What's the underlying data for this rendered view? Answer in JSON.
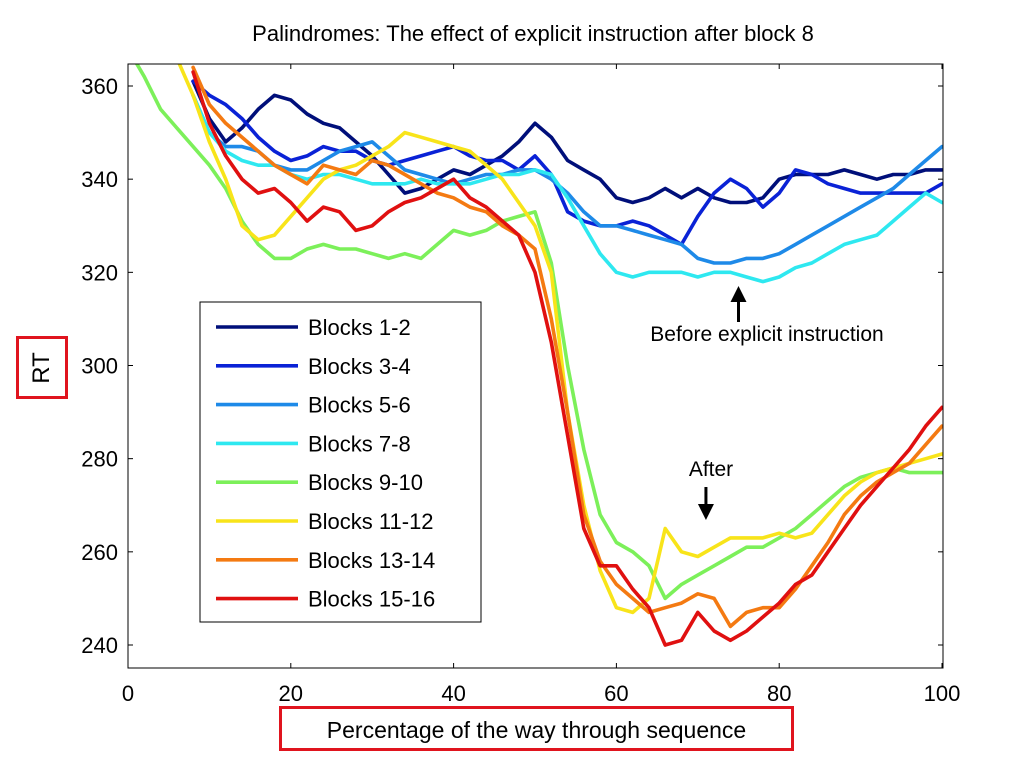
{
  "chart_data": {
    "type": "line",
    "title": "Palindromes: The effect of explicit instruction after block 8",
    "xlabel": "Percentage of the way through sequence",
    "ylabel": "RT",
    "xlim": [
      0,
      100
    ],
    "ylim": [
      235,
      365
    ],
    "xticks": [
      0,
      20,
      40,
      60,
      80,
      100
    ],
    "yticks": [
      240,
      260,
      280,
      300,
      320,
      340,
      360
    ],
    "grid": false,
    "legend_position": "left-middle",
    "series": [
      {
        "name": "Blocks 1-2",
        "color": "#000f7a",
        "x": [
          8,
          10,
          12,
          14,
          16,
          18,
          20,
          22,
          24,
          26,
          28,
          30,
          32,
          34,
          36,
          38,
          40,
          42,
          44,
          46,
          48,
          50,
          52,
          54,
          56,
          58,
          60,
          62,
          64,
          66,
          68,
          70,
          72,
          74,
          76,
          78,
          80,
          82,
          84,
          86,
          88,
          90,
          92,
          94,
          96,
          98,
          100
        ],
        "y": [
          361,
          353,
          348,
          351,
          355,
          358,
          357,
          354,
          352,
          351,
          348,
          345,
          341,
          337,
          338,
          340,
          342,
          341,
          343,
          345,
          348,
          352,
          349,
          344,
          342,
          340,
          336,
          335,
          336,
          338,
          336,
          338,
          336,
          335,
          335,
          336,
          340,
          341,
          341,
          341,
          342,
          341,
          340,
          341,
          341,
          342,
          342
        ]
      },
      {
        "name": "Blocks 3-4",
        "color": "#0a22d6",
        "x": [
          8,
          10,
          12,
          14,
          16,
          18,
          20,
          22,
          24,
          26,
          28,
          30,
          32,
          34,
          36,
          38,
          40,
          42,
          44,
          46,
          48,
          50,
          52,
          54,
          56,
          58,
          60,
          62,
          64,
          66,
          68,
          70,
          72,
          74,
          76,
          78,
          80,
          82,
          84,
          86,
          88,
          90,
          92,
          94,
          96,
          98,
          100
        ],
        "y": [
          361,
          358,
          356,
          353,
          349,
          346,
          344,
          345,
          347,
          346,
          346,
          344,
          343,
          344,
          345,
          346,
          347,
          345,
          344,
          344,
          342,
          345,
          341,
          333,
          331,
          330,
          330,
          331,
          330,
          328,
          326,
          332,
          337,
          340,
          338,
          334,
          337,
          342,
          341,
          339,
          338,
          337,
          337,
          337,
          337,
          337,
          339
        ]
      },
      {
        "name": "Blocks 5-6",
        "color": "#1e8ae8",
        "x": [
          8,
          10,
          12,
          14,
          16,
          18,
          20,
          22,
          24,
          26,
          28,
          30,
          32,
          34,
          36,
          38,
          40,
          42,
          44,
          46,
          48,
          50,
          52,
          54,
          56,
          58,
          60,
          62,
          64,
          66,
          68,
          70,
          72,
          74,
          76,
          78,
          80,
          82,
          84,
          86,
          88,
          90,
          92,
          94,
          96,
          98,
          100
        ],
        "y": [
          358,
          350,
          347,
          347,
          346,
          343,
          342,
          342,
          344,
          346,
          347,
          348,
          345,
          342,
          341,
          340,
          339,
          340,
          341,
          341,
          342,
          342,
          340,
          337,
          333,
          330,
          330,
          329,
          328,
          327,
          326,
          323,
          322,
          322,
          323,
          323,
          324,
          326,
          328,
          330,
          332,
          334,
          336,
          338,
          341,
          344,
          347
        ]
      },
      {
        "name": "Blocks 7-8",
        "color": "#2ee8f0",
        "x": [
          8,
          10,
          12,
          14,
          16,
          18,
          20,
          22,
          24,
          26,
          28,
          30,
          32,
          34,
          36,
          38,
          40,
          42,
          44,
          46,
          48,
          50,
          52,
          54,
          56,
          58,
          60,
          62,
          64,
          66,
          68,
          70,
          72,
          74,
          76,
          78,
          80,
          82,
          84,
          86,
          88,
          90,
          92,
          94,
          96,
          98,
          100
        ],
        "y": [
          358,
          350,
          346,
          344,
          343,
          343,
          341,
          340,
          341,
          341,
          340,
          339,
          339,
          339,
          340,
          339,
          339,
          339,
          340,
          341,
          341,
          342,
          341,
          336,
          330,
          324,
          320,
          319,
          320,
          320,
          320,
          319,
          320,
          320,
          319,
          318,
          319,
          321,
          322,
          324,
          326,
          327,
          328,
          331,
          334,
          337,
          335
        ]
      },
      {
        "name": "Blocks 9-10",
        "color": "#7cf05a",
        "x": [
          0,
          2,
          4,
          6,
          8,
          10,
          12,
          14,
          16,
          18,
          20,
          22,
          24,
          26,
          28,
          30,
          32,
          34,
          36,
          38,
          40,
          42,
          44,
          46,
          48,
          50,
          52,
          54,
          56,
          58,
          60,
          62,
          64,
          66,
          68,
          70,
          72,
          74,
          76,
          78,
          80,
          82,
          84,
          86,
          88,
          90,
          92,
          94,
          96,
          98,
          100
        ],
        "y": [
          368,
          362,
          355,
          351,
          347,
          343,
          338,
          331,
          326,
          323,
          323,
          325,
          326,
          325,
          325,
          324,
          323,
          324,
          323,
          326,
          329,
          328,
          329,
          331,
          332,
          333,
          322,
          300,
          282,
          268,
          262,
          260,
          257,
          250,
          253,
          255,
          257,
          259,
          261,
          261,
          263,
          265,
          268,
          271,
          274,
          276,
          277,
          278,
          277,
          277,
          277
        ]
      },
      {
        "name": "Blocks 11-12",
        "color": "#f8e41a",
        "x": [
          6,
          8,
          10,
          12,
          14,
          16,
          18,
          20,
          22,
          24,
          26,
          28,
          30,
          32,
          34,
          36,
          38,
          40,
          42,
          44,
          46,
          48,
          50,
          52,
          54,
          56,
          58,
          60,
          62,
          64,
          66,
          68,
          70,
          72,
          74,
          76,
          78,
          80,
          82,
          84,
          86,
          88,
          90,
          92,
          94,
          96,
          98,
          100
        ],
        "y": [
          366,
          358,
          348,
          340,
          330,
          327,
          328,
          332,
          336,
          340,
          342,
          343,
          345,
          347,
          350,
          349,
          348,
          347,
          346,
          343,
          340,
          335,
          330,
          320,
          290,
          270,
          256,
          248,
          247,
          250,
          265,
          260,
          259,
          261,
          263,
          263,
          263,
          264,
          263,
          264,
          268,
          272,
          275,
          277,
          278,
          279,
          280,
          281
        ]
      },
      {
        "name": "Blocks 13-14",
        "color": "#f47a12",
        "x": [
          8,
          10,
          12,
          14,
          16,
          18,
          20,
          22,
          24,
          26,
          28,
          30,
          32,
          34,
          36,
          38,
          40,
          42,
          44,
          46,
          48,
          50,
          52,
          54,
          56,
          58,
          60,
          62,
          64,
          66,
          68,
          70,
          72,
          74,
          76,
          78,
          80,
          82,
          84,
          86,
          88,
          90,
          92,
          94,
          96,
          98,
          100
        ],
        "y": [
          364,
          356,
          352,
          349,
          346,
          343,
          341,
          339,
          343,
          342,
          341,
          344,
          343,
          341,
          339,
          337,
          336,
          334,
          333,
          330,
          328,
          325,
          310,
          290,
          268,
          258,
          253,
          250,
          247,
          248,
          249,
          251,
          250,
          244,
          247,
          248,
          248,
          252,
          257,
          262,
          268,
          272,
          275,
          277,
          279,
          283,
          287
        ]
      },
      {
        "name": "Blocks 15-16",
        "color": "#e01010",
        "x": [
          8,
          10,
          12,
          14,
          16,
          18,
          20,
          22,
          24,
          26,
          28,
          30,
          32,
          34,
          36,
          38,
          40,
          42,
          44,
          46,
          48,
          50,
          52,
          54,
          56,
          58,
          60,
          62,
          64,
          66,
          68,
          70,
          72,
          74,
          76,
          78,
          80,
          82,
          84,
          86,
          88,
          90,
          92,
          94,
          96,
          98,
          100
        ],
        "y": [
          363,
          352,
          345,
          340,
          337,
          338,
          335,
          331,
          334,
          333,
          329,
          330,
          333,
          335,
          336,
          338,
          340,
          336,
          334,
          331,
          328,
          320,
          305,
          285,
          265,
          257,
          257,
          252,
          248,
          240,
          241,
          247,
          243,
          241,
          243,
          246,
          249,
          253,
          255,
          260,
          265,
          270,
          274,
          278,
          282,
          287,
          291
        ]
      }
    ],
    "annotations": [
      {
        "text": "Before explicit instruction",
        "x": 75,
        "y": 319,
        "arrow": "up"
      },
      {
        "text": "After",
        "x": 71,
        "y": 272,
        "arrow": "down"
      }
    ]
  }
}
